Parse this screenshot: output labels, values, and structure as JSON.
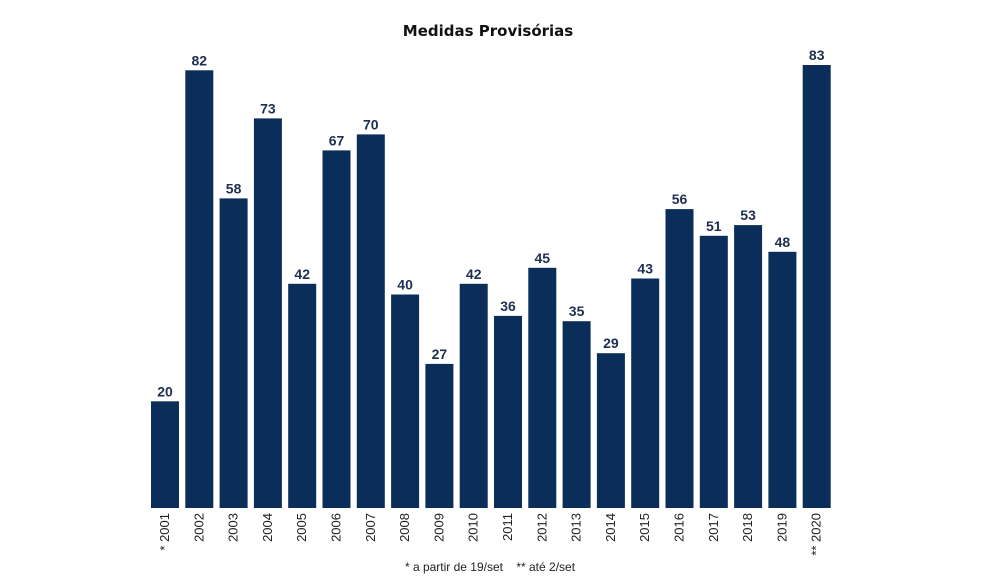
{
  "chart_data": {
    "type": "bar",
    "title": "Medidas Provisórias",
    "categories": [
      "* 2001",
      "2002",
      "2003",
      "2004",
      "2005",
      "2006",
      "2007",
      "2008",
      "2009",
      "2010",
      "2011",
      "2012",
      "2013",
      "2014",
      "2015",
      "2016",
      "2017",
      "2018",
      "2019",
      "** 2020"
    ],
    "values": [
      20,
      82,
      58,
      73,
      42,
      67,
      70,
      40,
      27,
      42,
      36,
      45,
      35,
      29,
      43,
      56,
      51,
      53,
      48,
      83
    ],
    "xlabel": "",
    "ylabel": "",
    "ylim": [
      0,
      83
    ],
    "grid": false,
    "bar_color": "#0a2d5a",
    "footnote": "* a partir de 19/set    ** até 2/set"
  }
}
